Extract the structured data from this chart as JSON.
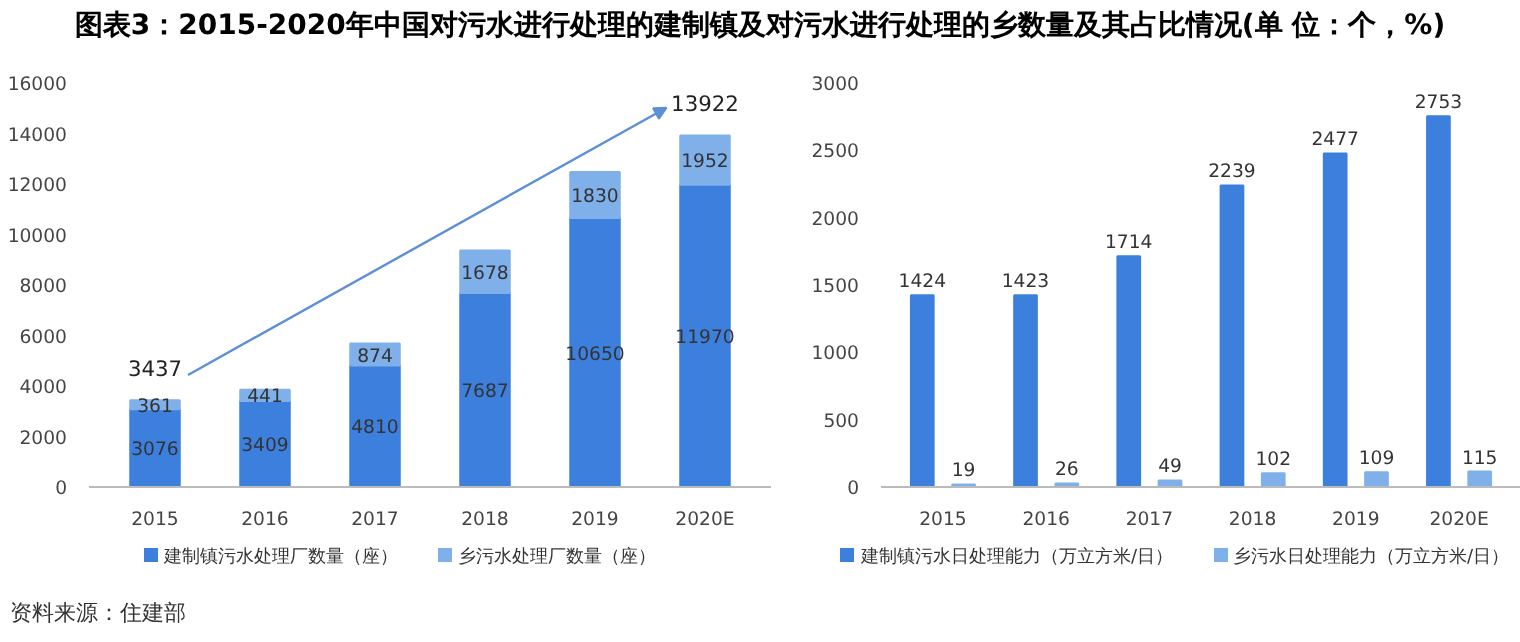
{
  "chart_data": [
    {
      "type": "bar",
      "title": "图表3：2015-2020年中国对污水进行处理的建制镇及对污水进行处理的乡数量及其占比情况(单 位：个，%)",
      "stacked": true,
      "categories": [
        "2015",
        "2016",
        "2017",
        "2018",
        "2019",
        "2020E"
      ],
      "series": [
        {
          "name": "建制镇污水处理厂数量（座）",
          "color": "#3d7fdc",
          "values": [
            3076,
            3409,
            4810,
            7687,
            10650,
            11970
          ]
        },
        {
          "name": "乡污水处理厂数量（座）",
          "color": "#7fb0ea",
          "values": [
            361,
            441,
            874,
            1678,
            1830,
            1952
          ]
        }
      ],
      "ylim": [
        0,
        16000
      ],
      "yticks": [
        0,
        2000,
        4000,
        6000,
        8000,
        10000,
        12000,
        14000,
        16000
      ],
      "grid": false,
      "legend": "bottom",
      "data_labels": true,
      "annotations": [
        {
          "text": "3437",
          "x": "2015",
          "y": 3437
        },
        {
          "text": "13922",
          "x": "2020E",
          "y": 13922
        },
        "资料来源：住建部"
      ]
    },
    {
      "type": "bar",
      "categories": [
        "2015",
        "2016",
        "2017",
        "2018",
        "2019",
        "2020E"
      ],
      "series": [
        {
          "name": "建制镇污水日处理能力（万立方米/日）",
          "color": "#3d7fdc",
          "values": [
            1424,
            1423,
            1714,
            2239,
            2477,
            2753
          ]
        },
        {
          "name": "乡污水日处理能力（万立方米/日）",
          "color": "#7fb0ea",
          "values": [
            19,
            26,
            49,
            102,
            109,
            115
          ]
        }
      ],
      "ylim": [
        0,
        3000
      ],
      "yticks": [
        0,
        500,
        1000,
        1500,
        2000,
        2500,
        3000
      ],
      "grid": false,
      "legend": "bottom",
      "data_labels": true
    }
  ]
}
